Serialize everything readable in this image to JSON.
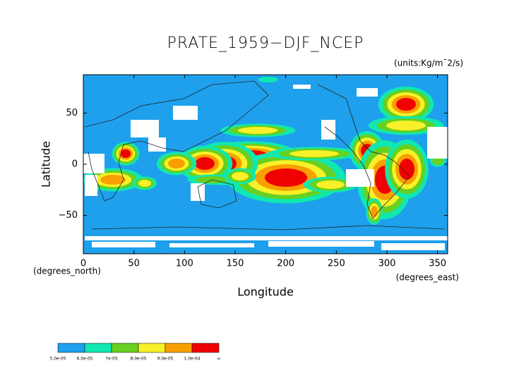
{
  "chart_data": {
    "type": "contour-map",
    "title": "PRATE_1959−DJF_NCEP",
    "units": "(units:Kg/m¯2/s)",
    "x_label": "Longitude",
    "y_label": "Latitude",
    "x_unit_label": "(degrees_east)",
    "y_unit_label": "(degrees_north)",
    "xlim": [
      0,
      360
    ],
    "ylim": [
      -87.5,
      87.5
    ],
    "xticks": [
      0,
      50,
      100,
      150,
      200,
      250,
      300,
      350
    ],
    "yticks": [
      {
        "value": -50,
        "label": "−50"
      },
      0,
      50
    ],
    "levels": [
      {
        "value": 5e-05,
        "label": "5.0e-05"
      },
      {
        "value": 6e-05,
        "label": "6.0e-05"
      },
      {
        "value": 7e-05,
        "label": "7e-05"
      },
      {
        "value": 8e-05,
        "label": "8.0e-05"
      },
      {
        "value": 9e-05,
        "label": "9.0e-05"
      },
      {
        "value": 0.0001,
        "label": "1.0e-04"
      }
    ],
    "colors": [
      "#1ea0ec",
      "#10e8b0",
      "#68d020",
      "#f8f028",
      "#f8a000",
      "#f00000"
    ],
    "extend_label": "∞"
  }
}
